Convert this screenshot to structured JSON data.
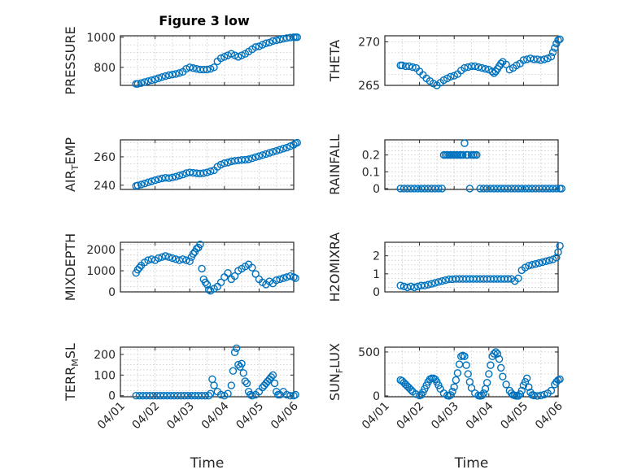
{
  "figure": {
    "title": "Figure 3 low",
    "marker_color": "#0072bd"
  },
  "chart_data": [
    {
      "id": "pressure",
      "type": "scatter",
      "title": "Figure 3 low",
      "ylabel_main": "PRESSURE",
      "ylabel_sub": "",
      "ylabel_tail": "",
      "xlim": [
        0,
        5
      ],
      "ylim": [
        680,
        1010
      ],
      "yticks": [
        800,
        1000
      ],
      "ytick_labels": [
        "800",
        "1000"
      ],
      "xtick_labels": [],
      "x": [
        0.45,
        0.5,
        0.6,
        0.7,
        0.8,
        0.9,
        1.0,
        1.1,
        1.2,
        1.3,
        1.4,
        1.5,
        1.6,
        1.7,
        1.8,
        1.9,
        2.0,
        2.1,
        2.2,
        2.3,
        2.4,
        2.5,
        2.6,
        2.7,
        2.8,
        2.9,
        3.0,
        3.1,
        3.2,
        3.3,
        3.4,
        3.5,
        3.6,
        3.7,
        3.8,
        3.9,
        4.0,
        4.1,
        4.2,
        4.3,
        4.4,
        4.5,
        4.6,
        4.7,
        4.8,
        4.9,
        5.0,
        5.05,
        5.1
      ],
      "y": [
        690,
        690,
        695,
        702,
        708,
        714,
        720,
        728,
        735,
        742,
        748,
        752,
        756,
        762,
        770,
        790,
        800,
        795,
        790,
        785,
        785,
        785,
        790,
        800,
        840,
        860,
        870,
        880,
        890,
        880,
        870,
        880,
        890,
        905,
        920,
        935,
        940,
        950,
        960,
        965,
        975,
        980,
        985,
        990,
        995,
        998,
        1000,
        1000,
        1000
      ]
    },
    {
      "id": "theta",
      "type": "scatter",
      "ylabel_main": "THETA",
      "ylabel_sub": "",
      "ylabel_tail": "",
      "xlim": [
        0,
        5
      ],
      "ylim": [
        265,
        270.7
      ],
      "yticks": [
        265,
        270
      ],
      "ytick_labels": [
        "265",
        "270"
      ],
      "xtick_labels": [],
      "x": [
        0.45,
        0.5,
        0.6,
        0.7,
        0.8,
        0.9,
        1.0,
        1.1,
        1.2,
        1.3,
        1.4,
        1.5,
        1.6,
        1.7,
        1.8,
        1.9,
        2.0,
        2.1,
        2.2,
        2.3,
        2.4,
        2.5,
        2.6,
        2.7,
        2.8,
        2.9,
        3.0,
        3.1,
        3.15,
        3.2,
        3.25,
        3.3,
        3.35,
        3.4,
        3.5,
        3.6,
        3.7,
        3.8,
        3.9,
        4.0,
        4.1,
        4.2,
        4.3,
        4.4,
        4.5,
        4.6,
        4.7,
        4.8,
        4.85,
        4.9,
        4.95,
        5.0,
        5.05
      ],
      "y": [
        267.3,
        267.3,
        267.2,
        267.2,
        267.1,
        267.0,
        266.6,
        266.2,
        265.8,
        265.5,
        265.2,
        265.0,
        265.3,
        265.6,
        265.8,
        266.0,
        266.1,
        266.3,
        266.7,
        267.0,
        267.1,
        267.2,
        267.2,
        267.1,
        267.0,
        266.9,
        266.8,
        266.6,
        266.4,
        266.6,
        266.9,
        267.2,
        267.5,
        267.7,
        267.4,
        266.8,
        267.0,
        267.3,
        267.5,
        267.9,
        268.0,
        268.1,
        268.0,
        268.0,
        267.9,
        268.0,
        268.1,
        268.3,
        268.8,
        269.3,
        269.8,
        270.2,
        270.3
      ]
    },
    {
      "id": "air_temp",
      "type": "scatter",
      "ylabel_main": "AIR",
      "ylabel_sub": "T",
      "ylabel_tail": "EMP",
      "xlim": [
        0,
        5
      ],
      "ylim": [
        237,
        272
      ],
      "yticks": [
        240,
        260
      ],
      "ytick_labels": [
        "240",
        "260"
      ],
      "xtick_labels": [],
      "x": [
        0.45,
        0.5,
        0.6,
        0.7,
        0.8,
        0.9,
        1.0,
        1.1,
        1.2,
        1.3,
        1.4,
        1.5,
        1.6,
        1.7,
        1.8,
        1.9,
        2.0,
        2.1,
        2.2,
        2.3,
        2.4,
        2.5,
        2.6,
        2.7,
        2.8,
        2.9,
        3.0,
        3.1,
        3.2,
        3.3,
        3.4,
        3.5,
        3.6,
        3.7,
        3.8,
        3.9,
        4.0,
        4.1,
        4.2,
        4.3,
        4.4,
        4.5,
        4.6,
        4.7,
        4.8,
        4.9,
        5.0,
        5.05,
        5.1
      ],
      "y": [
        239.5,
        239.8,
        240.5,
        241.2,
        242.0,
        242.8,
        243.5,
        244.2,
        244.8,
        245.2,
        245.0,
        245.4,
        246.0,
        246.8,
        247.5,
        248.5,
        249.0,
        248.7,
        248.4,
        248.2,
        248.5,
        249.0,
        249.8,
        250.5,
        253.0,
        254.5,
        255.5,
        256.0,
        256.8,
        257.2,
        257.5,
        257.8,
        258.0,
        258.3,
        259.0,
        259.8,
        260.5,
        261.2,
        262.0,
        262.8,
        263.5,
        264.2,
        265.0,
        265.8,
        266.5,
        267.5,
        268.5,
        269.5,
        270.0
      ]
    },
    {
      "id": "rainfall",
      "type": "scatter",
      "ylabel_main": "RAINFALL",
      "ylabel_sub": "",
      "ylabel_tail": "",
      "xlim": [
        0,
        5
      ],
      "ylim": [
        -0.005,
        0.29
      ],
      "yticks": [
        0,
        0.1,
        0.2
      ],
      "ytick_labels": [
        "0",
        "0.1",
        "0.2"
      ],
      "xtick_labels": [],
      "x": [
        0.45,
        0.55,
        0.65,
        0.75,
        0.85,
        0.95,
        1.05,
        1.15,
        1.25,
        1.35,
        1.45,
        1.55,
        1.65,
        1.7,
        1.75,
        1.8,
        1.85,
        1.9,
        1.95,
        2.0,
        2.05,
        2.1,
        2.15,
        2.2,
        2.25,
        2.3,
        2.35,
        2.4,
        2.45,
        2.5,
        2.55,
        2.6,
        2.65,
        2.75,
        2.85,
        2.95,
        3.05,
        3.15,
        3.25,
        3.35,
        3.45,
        3.55,
        3.65,
        3.75,
        3.85,
        3.95,
        4.05,
        4.15,
        4.25,
        4.35,
        4.45,
        4.55,
        4.65,
        4.75,
        4.85,
        4.95,
        5.05,
        5.1
      ],
      "y": [
        0,
        0,
        0,
        0,
        0,
        0,
        0,
        0,
        0,
        0,
        0,
        0,
        0,
        0.2,
        0.2,
        0.2,
        0.2,
        0.2,
        0.2,
        0.2,
        0.2,
        0.2,
        0.2,
        0.2,
        0.2,
        0.27,
        0.2,
        0.2,
        0,
        0.2,
        0.2,
        0.2,
        0.2,
        0,
        0,
        0,
        0,
        0,
        0,
        0,
        0,
        0,
        0,
        0,
        0,
        0,
        0,
        0,
        0,
        0,
        0,
        0,
        0,
        0,
        0,
        0,
        0,
        0
      ]
    },
    {
      "id": "mixdepth",
      "type": "scatter",
      "ylabel_main": "MIXDEPTH",
      "ylabel_sub": "",
      "ylabel_tail": "",
      "xlim": [
        0,
        5
      ],
      "ylim": [
        0,
        2350
      ],
      "yticks": [
        0,
        1000,
        2000
      ],
      "ytick_labels": [
        "0",
        "1000",
        "2000"
      ],
      "xtick_labels": [],
      "x": [
        0.45,
        0.5,
        0.55,
        0.6,
        0.7,
        0.8,
        0.9,
        1.0,
        1.1,
        1.2,
        1.3,
        1.4,
        1.5,
        1.6,
        1.7,
        1.8,
        1.9,
        2.0,
        2.05,
        2.1,
        2.15,
        2.2,
        2.25,
        2.3,
        2.35,
        2.4,
        2.45,
        2.5,
        2.55,
        2.6,
        2.7,
        2.8,
        2.9,
        3.0,
        3.1,
        3.2,
        3.3,
        3.4,
        3.5,
        3.6,
        3.7,
        3.8,
        3.9,
        4.0,
        4.1,
        4.2,
        4.3,
        4.4,
        4.5,
        4.6,
        4.7,
        4.8,
        4.9,
        5.0,
        5.05
      ],
      "y": [
        900,
        1050,
        1150,
        1250,
        1400,
        1500,
        1550,
        1500,
        1600,
        1650,
        1700,
        1650,
        1600,
        1550,
        1500,
        1550,
        1500,
        1450,
        1650,
        1800,
        1900,
        2050,
        2100,
        2250,
        1100,
        600,
        450,
        350,
        100,
        50,
        150,
        250,
        450,
        700,
        900,
        600,
        750,
        1000,
        1100,
        1200,
        1300,
        1150,
        850,
        600,
        450,
        350,
        500,
        400,
        550,
        600,
        650,
        700,
        750,
        700,
        650
      ]
    },
    {
      "id": "h2omixra",
      "type": "scatter",
      "ylabel_main": "H2OMIXRA",
      "ylabel_sub": "",
      "ylabel_tail": "",
      "xlim": [
        0,
        5
      ],
      "ylim": [
        0,
        2.75
      ],
      "yticks": [
        0,
        1,
        2
      ],
      "ytick_labels": [
        "0",
        "1",
        "2"
      ],
      "xtick_labels": [],
      "x": [
        0.45,
        0.55,
        0.65,
        0.75,
        0.85,
        0.95,
        1.05,
        1.15,
        1.25,
        1.35,
        1.45,
        1.55,
        1.65,
        1.75,
        1.85,
        1.95,
        2.05,
        2.15,
        2.25,
        2.35,
        2.45,
        2.55,
        2.65,
        2.75,
        2.85,
        2.95,
        3.05,
        3.15,
        3.25,
        3.35,
        3.45,
        3.55,
        3.65,
        3.75,
        3.85,
        3.95,
        4.05,
        4.15,
        4.25,
        4.35,
        4.45,
        4.55,
        4.65,
        4.75,
        4.85,
        4.95,
        5.0,
        5.05
      ],
      "y": [
        0.35,
        0.3,
        0.25,
        0.3,
        0.25,
        0.3,
        0.35,
        0.35,
        0.4,
        0.45,
        0.5,
        0.55,
        0.6,
        0.65,
        0.7,
        0.7,
        0.72,
        0.72,
        0.72,
        0.72,
        0.72,
        0.72,
        0.72,
        0.72,
        0.72,
        0.72,
        0.72,
        0.72,
        0.72,
        0.72,
        0.72,
        0.72,
        0.72,
        0.6,
        0.75,
        1.2,
        1.35,
        1.45,
        1.5,
        1.55,
        1.6,
        1.65,
        1.7,
        1.75,
        1.8,
        1.9,
        2.2,
        2.55
      ]
    },
    {
      "id": "terr_msl",
      "type": "scatter",
      "ylabel_main": "TERR",
      "ylabel_sub": "M",
      "ylabel_tail": "SL",
      "xlim": [
        0,
        5
      ],
      "ylim": [
        -5,
        235
      ],
      "yticks": [
        0,
        100,
        200
      ],
      "ytick_labels": [
        "0",
        "100",
        "200"
      ],
      "xtick_labels": [
        "04/01",
        "04/02",
        "04/03",
        "04/04",
        "04/05",
        "04/06"
      ],
      "xlabel": "Time",
      "x": [
        0.45,
        0.55,
        0.65,
        0.75,
        0.85,
        0.95,
        1.05,
        1.15,
        1.25,
        1.35,
        1.45,
        1.55,
        1.65,
        1.75,
        1.85,
        1.95,
        2.05,
        2.15,
        2.25,
        2.35,
        2.45,
        2.55,
        2.6,
        2.65,
        2.7,
        2.8,
        2.9,
        3.0,
        3.1,
        3.2,
        3.25,
        3.3,
        3.35,
        3.4,
        3.45,
        3.5,
        3.55,
        3.6,
        3.65,
        3.7,
        3.75,
        3.8,
        3.9,
        4.0,
        4.1,
        4.15,
        4.2,
        4.25,
        4.3,
        4.35,
        4.4,
        4.45,
        4.5,
        4.55,
        4.6,
        4.7,
        4.8,
        4.9,
        5.0,
        5.05
      ],
      "y": [
        0,
        0,
        0,
        0,
        0,
        0,
        0,
        0,
        0,
        0,
        0,
        0,
        0,
        0,
        0,
        0,
        0,
        0,
        0,
        0,
        0,
        0,
        10,
        80,
        50,
        20,
        5,
        0,
        10,
        50,
        120,
        210,
        230,
        150,
        140,
        155,
        110,
        70,
        60,
        20,
        5,
        0,
        5,
        20,
        40,
        50,
        60,
        70,
        80,
        90,
        100,
        60,
        20,
        5,
        5,
        20,
        5,
        0,
        0,
        5
      ]
    },
    {
      "id": "sun_flux",
      "type": "scatter",
      "ylabel_main": "SUN",
      "ylabel_sub": "F",
      "ylabel_tail": "LUX",
      "xlim": [
        0,
        5
      ],
      "ylim": [
        -10,
        555
      ],
      "yticks": [
        0,
        500
      ],
      "ytick_labels": [
        "0",
        "500"
      ],
      "xtick_labels": [
        "04/01",
        "04/02",
        "04/03",
        "04/04",
        "04/05",
        "04/06"
      ],
      "xlabel": "Time",
      "x": [
        0.45,
        0.5,
        0.55,
        0.6,
        0.65,
        0.7,
        0.75,
        0.8,
        0.9,
        1.0,
        1.05,
        1.1,
        1.15,
        1.2,
        1.25,
        1.3,
        1.35,
        1.4,
        1.45,
        1.5,
        1.55,
        1.6,
        1.7,
        1.8,
        1.85,
        1.9,
        1.95,
        2.0,
        2.05,
        2.1,
        2.15,
        2.2,
        2.25,
        2.3,
        2.35,
        2.4,
        2.45,
        2.5,
        2.6,
        2.7,
        2.75,
        2.8,
        2.85,
        2.9,
        2.95,
        3.0,
        3.05,
        3.1,
        3.15,
        3.2,
        3.25,
        3.3,
        3.35,
        3.4,
        3.5,
        3.6,
        3.65,
        3.7,
        3.75,
        3.8,
        3.85,
        3.9,
        3.95,
        4.0,
        4.05,
        4.1,
        4.15,
        4.2,
        4.25,
        4.3,
        4.4,
        4.5,
        4.6,
        4.7,
        4.8,
        4.9,
        4.95,
        5.0,
        5.05
      ],
      "y": [
        180,
        170,
        150,
        130,
        110,
        90,
        70,
        50,
        20,
        5,
        10,
        40,
        80,
        120,
        160,
        190,
        200,
        200,
        190,
        160,
        120,
        80,
        30,
        5,
        0,
        10,
        50,
        100,
        180,
        260,
        360,
        450,
        460,
        450,
        350,
        250,
        160,
        90,
        30,
        5,
        0,
        5,
        30,
        80,
        150,
        250,
        350,
        450,
        480,
        500,
        480,
        420,
        320,
        220,
        130,
        60,
        30,
        10,
        5,
        0,
        0,
        20,
        60,
        120,
        160,
        200,
        100,
        40,
        10,
        5,
        0,
        5,
        15,
        30,
        60,
        130,
        160,
        180,
        190
      ]
    }
  ]
}
